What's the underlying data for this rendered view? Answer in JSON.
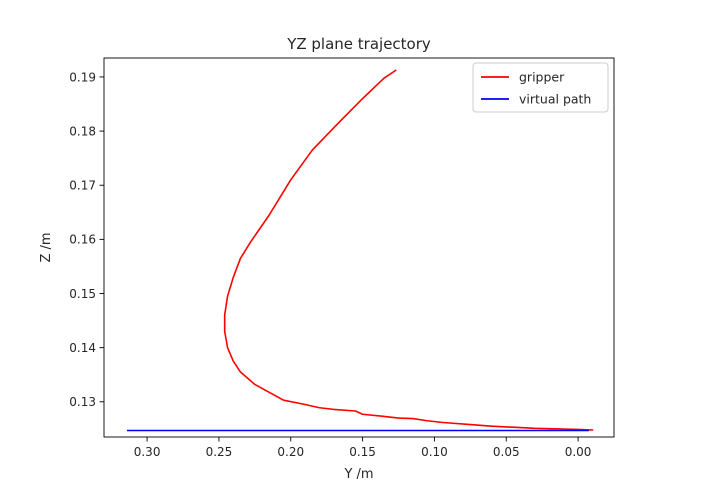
{
  "chart_data": {
    "type": "line",
    "title": "YZ plane trajectory",
    "xlabel": "Y  /m",
    "ylabel": "Z  /m",
    "xlim": [
      0.33,
      -0.025
    ],
    "ylim": [
      0.1235,
      0.1935
    ],
    "x_inverted": true,
    "grid": false,
    "legend_position": "top-right",
    "xticks": [
      0.3,
      0.25,
      0.2,
      0.15,
      0.1,
      0.05,
      0.0
    ],
    "xtick_labels": [
      "0.30",
      "0.25",
      "0.20",
      "0.15",
      "0.10",
      "0.05",
      "0.00"
    ],
    "yticks": [
      0.13,
      0.14,
      0.15,
      0.16,
      0.17,
      0.18,
      0.19
    ],
    "ytick_labels": [
      "0.13",
      "0.14",
      "0.15",
      "0.16",
      "0.17",
      "0.18",
      "0.19"
    ],
    "series": [
      {
        "name": "gripper",
        "color": "#ff0000",
        "points": [
          [
            -0.01,
            0.1248
          ],
          [
            0.0,
            0.1249
          ],
          [
            0.03,
            0.1251
          ],
          [
            0.06,
            0.1255
          ],
          [
            0.075,
            0.1258
          ],
          [
            0.095,
            0.1262
          ],
          [
            0.105,
            0.1265
          ],
          [
            0.115,
            0.1269
          ],
          [
            0.125,
            0.127
          ],
          [
            0.135,
            0.1273
          ],
          [
            0.15,
            0.1277
          ],
          [
            0.155,
            0.1283
          ],
          [
            0.17,
            0.1286
          ],
          [
            0.18,
            0.1289
          ],
          [
            0.19,
            0.1295
          ],
          [
            0.205,
            0.1303
          ],
          [
            0.225,
            0.1332
          ],
          [
            0.235,
            0.1355
          ],
          [
            0.24,
            0.1375
          ],
          [
            0.244,
            0.14
          ],
          [
            0.246,
            0.143
          ],
          [
            0.246,
            0.146
          ],
          [
            0.244,
            0.1495
          ],
          [
            0.24,
            0.153
          ],
          [
            0.235,
            0.1565
          ],
          [
            0.228,
            0.1595
          ],
          [
            0.215,
            0.1645
          ],
          [
            0.2,
            0.171
          ],
          [
            0.185,
            0.1765
          ],
          [
            0.165,
            0.182
          ],
          [
            0.15,
            0.186
          ],
          [
            0.135,
            0.1898
          ],
          [
            0.127,
            0.1912
          ]
        ]
      },
      {
        "name": "virtual path",
        "color": "#0000ff",
        "points": [
          [
            0.3135,
            0.1247
          ],
          [
            -0.007,
            0.1247
          ]
        ]
      }
    ]
  }
}
